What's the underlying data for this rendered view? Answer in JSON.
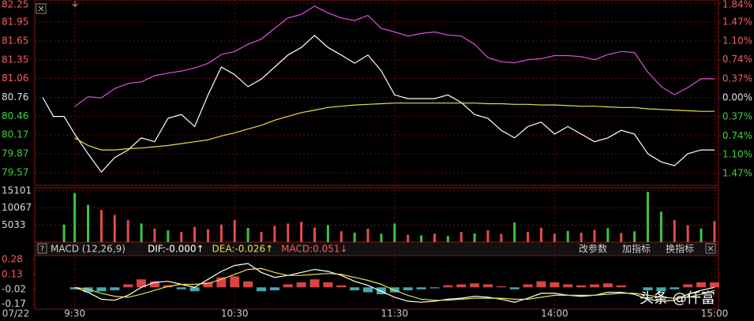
{
  "chart_data": [
    {
      "type": "line",
      "date": "07/22",
      "x": [
        -12,
        -8,
        -4,
        0,
        5,
        10,
        15,
        20,
        25,
        30,
        35,
        40,
        45,
        50,
        55,
        60,
        65,
        70,
        75,
        80,
        85,
        90,
        95,
        100,
        105,
        110,
        115,
        120,
        125,
        130,
        135,
        140,
        145,
        150,
        155,
        160,
        165,
        170,
        175,
        180,
        185,
        190,
        195,
        200,
        205,
        210,
        215,
        220,
        225,
        230,
        235,
        240
      ],
      "xlim": [
        -15,
        241.5
      ],
      "xticks": [
        {
          "value": 0,
          "label": "9:30"
        },
        {
          "value": 60,
          "label": "10:30"
        },
        {
          "value": 120,
          "label": "11:30"
        },
        {
          "value": 180,
          "label": "14:00"
        },
        {
          "value": 240,
          "label": "15:00"
        }
      ],
      "ylim": [
        79.37,
        82.3
      ],
      "yticks": [
        82.25,
        81.95,
        81.65,
        81.35,
        81.06,
        80.76,
        80.46,
        80.17,
        79.87,
        79.57
      ],
      "y2lim": [
        -1.7,
        1.9
      ],
      "y2ticks": [
        {
          "value": 1.84,
          "label": "1.84%"
        },
        {
          "value": 1.47,
          "label": "1.47%"
        },
        {
          "value": 1.1,
          "label": "1.10%"
        },
        {
          "value": 0.74,
          "label": "0.74%"
        },
        {
          "value": 0.37,
          "label": "0.37%"
        },
        {
          "value": 0,
          "label": "0.00%"
        },
        {
          "value": -0.37,
          "label": "0.37%"
        },
        {
          "value": -0.74,
          "label": "0.74%"
        },
        {
          "value": -1.1,
          "label": "1.10%"
        },
        {
          "value": -1.47,
          "label": "1.47%"
        }
      ],
      "up_color": "#ff5a5a",
      "down_color": "#3fd13f",
      "flat_color": "#e0e0e0",
      "grid": true,
      "series": [
        {
          "color": "#ffffff",
          "values": [
            80.76,
            80.46,
            80.46,
            80.18,
            79.87,
            79.58,
            79.81,
            79.93,
            80.12,
            80.06,
            80.43,
            80.49,
            80.3,
            80.8,
            81.24,
            81.12,
            80.93,
            81.05,
            81.24,
            81.43,
            81.55,
            81.74,
            81.55,
            81.43,
            81.3,
            81.43,
            81.18,
            80.8,
            80.74,
            80.74,
            80.74,
            80.8,
            80.68,
            80.49,
            80.43,
            80.24,
            80.12,
            80.3,
            80.37,
            80.18,
            80.3,
            80.18,
            80.06,
            80.12,
            80.24,
            80.18,
            79.87,
            79.74,
            79.68,
            79.87,
            79.93,
            79.93
          ]
        },
        {
          "color": "#e6e04a",
          "values": [
            null,
            null,
            null,
            80.12,
            80.0,
            79.93,
            79.93,
            79.95,
            79.96,
            79.98,
            80.0,
            80.03,
            80.06,
            80.09,
            80.15,
            80.2,
            80.26,
            80.32,
            80.4,
            80.46,
            80.52,
            80.56,
            80.6,
            80.62,
            80.64,
            80.65,
            80.66,
            80.67,
            80.67,
            80.67,
            80.67,
            80.67,
            80.67,
            80.67,
            80.66,
            80.66,
            80.65,
            80.65,
            80.64,
            80.64,
            80.63,
            80.62,
            80.62,
            80.61,
            80.6,
            80.6,
            80.58,
            80.57,
            80.56,
            80.55,
            80.54,
            80.54
          ]
        },
        {
          "color": "#e04ee0",
          "axis": "y2",
          "values": [
            null,
            null,
            null,
            -0.17,
            0.02,
            0.0,
            0.18,
            0.28,
            0.31,
            0.43,
            0.48,
            0.52,
            0.58,
            0.67,
            0.84,
            0.9,
            1.04,
            1.14,
            1.35,
            1.55,
            1.62,
            1.78,
            1.65,
            1.55,
            1.5,
            1.6,
            1.35,
            1.28,
            1.2,
            1.25,
            1.28,
            1.22,
            1.2,
            1.04,
            0.78,
            0.7,
            0.68,
            0.74,
            0.76,
            0.82,
            0.82,
            0.8,
            0.74,
            0.84,
            0.9,
            0.88,
            0.5,
            0.22,
            0.06,
            0.2,
            0.37,
            0.37
          ]
        }
      ]
    },
    {
      "type": "bar",
      "x": [
        -4,
        0,
        5,
        10,
        15,
        20,
        25,
        30,
        35,
        40,
        45,
        50,
        55,
        60,
        65,
        70,
        75,
        80,
        85,
        90,
        95,
        100,
        105,
        110,
        115,
        120,
        125,
        130,
        135,
        140,
        145,
        150,
        155,
        160,
        165,
        170,
        175,
        180,
        185,
        190,
        195,
        200,
        205,
        210,
        215,
        220,
        225,
        230,
        235,
        240
      ],
      "ylim": [
        0,
        16060
      ],
      "yticks": [
        15101,
        10067,
        5033
      ],
      "values": [
        5200,
        14500,
        11000,
        9500,
        8000,
        6500,
        5500,
        4000,
        3500,
        3000,
        4500,
        3800,
        5200,
        6500,
        4200,
        3000,
        4800,
        5500,
        6000,
        4300,
        5000,
        3200,
        2800,
        4000,
        2500,
        5500,
        2200,
        2000,
        2500,
        1800,
        3000,
        2600,
        3500,
        2400,
        5800,
        3000,
        4200,
        2500,
        3300,
        2800,
        3600,
        4100,
        2700,
        3200,
        14800,
        9000,
        6500,
        5000,
        4000,
        6200
      ],
      "colors": [
        "#3ec43e",
        "#3ec43e",
        "#3ec43e",
        "#e84a4a",
        "#e84a4a",
        "#e84a4a",
        "#3ec43e",
        "#e84a4a",
        "#3ec43e",
        "#e84a4a",
        "#e84a4a",
        "#e84a4a",
        "#e84a4a",
        "#e84a4a",
        "#3ec43e",
        "#e84a4a",
        "#e84a4a",
        "#e84a4a",
        "#e84a4a",
        "#e84a4a",
        "#3ec43e",
        "#e84a4a",
        "#3ec43e",
        "#e84a4a",
        "#3ec43e",
        "#3ec43e",
        "#e84a4a",
        "#3ec43e",
        "#e84a4a",
        "#3ec43e",
        "#e84a4a",
        "#3ec43e",
        "#e84a4a",
        "#e84a4a",
        "#3ec43e",
        "#e84a4a",
        "#e84a4a",
        "#e84a4a",
        "#3ec43e",
        "#e84a4a",
        "#e84a4a",
        "#3ec43e",
        "#e84a4a",
        "#3ec43e",
        "#3ec43e",
        "#3ec43e",
        "#e84a4a",
        "#e84a4a",
        "#3ec43e",
        "#e84a4a"
      ]
    },
    {
      "type": "macd",
      "title": "MACD (12,26,9)",
      "legend": [
        {
          "text": "DIF:-0.000↑",
          "color": "#ffffff"
        },
        {
          "text": "DEA:-0.026↑",
          "color": "#e6e04a"
        },
        {
          "text": "MACD:0.051↓",
          "color": "#ff5a5a"
        }
      ],
      "buttons": [
        "改参数",
        "加指标",
        "换指标"
      ],
      "x": [
        0,
        5,
        10,
        15,
        20,
        25,
        30,
        35,
        40,
        45,
        50,
        55,
        60,
        65,
        70,
        75,
        80,
        85,
        90,
        95,
        100,
        105,
        110,
        115,
        120,
        125,
        130,
        135,
        140,
        145,
        150,
        155,
        160,
        165,
        170,
        175,
        180,
        185,
        190,
        195,
        200,
        205,
        210,
        215,
        220,
        225,
        230,
        235,
        240
      ],
      "ylim": [
        -0.22,
        0.32
      ],
      "yticks": [
        0.28,
        0.13,
        -0.02,
        -0.17
      ],
      "pos_color": "#ff5050",
      "neg_color": "#4cc8d0",
      "values": [
        -0.02,
        -0.05,
        -0.04,
        -0.03,
        0.03,
        0.08,
        0.06,
        0.02,
        -0.02,
        -0.04,
        0.05,
        0.1,
        0.11,
        0.06,
        -0.04,
        -0.03,
        0.03,
        0.05,
        0.08,
        0.05,
        0.02,
        -0.03,
        -0.05,
        -0.07,
        -0.05,
        -0.03,
        -0.02,
        -0.01,
        0.02,
        0.03,
        0.04,
        0.03,
        0.01,
        -0.02,
        0.03,
        0.06,
        0.05,
        0.03,
        0.02,
        0.03,
        0.04,
        0.02,
        0.0,
        -0.03,
        -0.04,
        -0.02,
        0.03,
        0.05,
        0.05
      ],
      "series": [
        {
          "color": "#ffffff",
          "values": [
            0.0,
            -0.05,
            -0.12,
            -0.13,
            -0.08,
            0.0,
            0.05,
            0.06,
            0.03,
            0.0,
            0.08,
            0.16,
            0.22,
            0.24,
            0.15,
            0.1,
            0.12,
            0.15,
            0.18,
            0.16,
            0.12,
            0.06,
            0.02,
            -0.04,
            -0.1,
            -0.14,
            -0.15,
            -0.14,
            -0.12,
            -0.11,
            -0.09,
            -0.1,
            -0.12,
            -0.15,
            -0.11,
            -0.06,
            -0.06,
            -0.08,
            -0.09,
            -0.08,
            -0.05,
            -0.05,
            -0.07,
            -0.12,
            -0.14,
            -0.13,
            -0.07,
            -0.03,
            0.0
          ]
        },
        {
          "color": "#e6e04a",
          "values": [
            0.0,
            -0.02,
            -0.06,
            -0.09,
            -0.1,
            -0.07,
            -0.03,
            0.01,
            0.03,
            0.03,
            0.04,
            0.08,
            0.13,
            0.18,
            0.19,
            0.15,
            0.12,
            0.12,
            0.13,
            0.14,
            0.13,
            0.1,
            0.07,
            0.03,
            -0.03,
            -0.08,
            -0.12,
            -0.13,
            -0.13,
            -0.12,
            -0.11,
            -0.11,
            -0.11,
            -0.12,
            -0.12,
            -0.1,
            -0.08,
            -0.08,
            -0.08,
            -0.08,
            -0.07,
            -0.06,
            -0.06,
            -0.08,
            -0.1,
            -0.11,
            -0.1,
            -0.07,
            -0.03
          ]
        }
      ]
    }
  ],
  "watermark": "头条 @仟富"
}
